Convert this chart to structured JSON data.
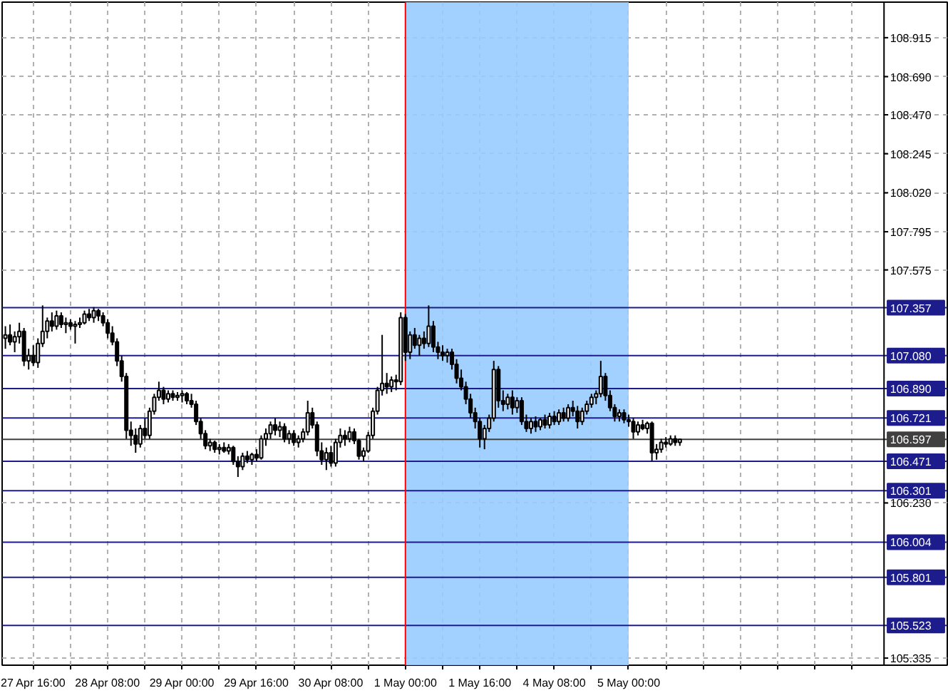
{
  "chart_data": {
    "type": "candlestick",
    "categories": [
      null,
      null,
      null,
      null,
      null,
      null,
      "27 Apr 16:00",
      null,
      null,
      null,
      null,
      null,
      null,
      null,
      null,
      null,
      null,
      null,
      null,
      null,
      null,
      null,
      "28 Apr 08:00",
      null,
      null,
      null,
      null,
      null,
      null,
      null,
      null,
      null,
      null,
      null,
      null,
      null,
      null,
      null,
      "29 Apr 00:00",
      null,
      null,
      null,
      null,
      null,
      null,
      null,
      null,
      null,
      null,
      null,
      null,
      null,
      null,
      null,
      "29 Apr 16:00",
      null,
      null,
      null,
      null,
      null,
      null,
      null,
      null,
      null,
      null,
      null,
      null,
      null,
      null,
      null,
      "30 Apr 08:00",
      null,
      null,
      null,
      null,
      null,
      null,
      null,
      null,
      null,
      null,
      null,
      null,
      null,
      null,
      null,
      "1 May 00:00",
      null,
      null,
      null,
      null,
      null,
      null,
      null,
      null,
      null,
      null,
      null,
      null,
      null,
      null,
      null,
      "1 May 16:00",
      null,
      null,
      null,
      null,
      null,
      null,
      null,
      null,
      null,
      null,
      null,
      null,
      null,
      null,
      null,
      "4 May 08:00",
      null,
      null,
      null,
      null,
      null,
      null,
      null,
      null,
      null,
      null,
      null,
      null,
      null,
      null,
      null,
      "5 May 00:00",
      null,
      null,
      null,
      null,
      null,
      null,
      null,
      null,
      null,
      null,
      null,
      null,
      null,
      null,
      null,
      null,
      null,
      null,
      null,
      null,
      null,
      null,
      null,
      null,
      null,
      null,
      null,
      null,
      null,
      null,
      null,
      null,
      null,
      null,
      null,
      null,
      null,
      null,
      null,
      null,
      null,
      null,
      null,
      null,
      null,
      null,
      null,
      null,
      null,
      null,
      null,
      null,
      null,
      null
    ],
    "ohlc": [
      [
        107.18,
        107.25,
        107.12,
        107.2
      ],
      [
        107.2,
        107.26,
        107.14,
        107.16
      ],
      [
        107.16,
        107.22,
        107.1,
        107.19
      ],
      [
        107.19,
        107.27,
        107.15,
        107.22
      ],
      [
        107.22,
        107.24,
        107.02,
        107.05
      ],
      [
        107.05,
        107.12,
        107.0,
        107.08
      ],
      [
        107.08,
        107.14,
        107.02,
        107.04
      ],
      [
        107.04,
        107.18,
        107.01,
        107.15
      ],
      [
        107.15,
        107.37,
        107.13,
        107.22
      ],
      [
        107.22,
        107.3,
        107.18,
        107.28
      ],
      [
        107.28,
        107.33,
        107.22,
        107.25
      ],
      [
        107.25,
        107.34,
        107.23,
        107.31
      ],
      [
        107.31,
        107.33,
        107.24,
        107.26
      ],
      [
        107.26,
        107.3,
        107.21,
        107.27
      ],
      [
        107.27,
        107.29,
        107.23,
        107.25
      ],
      [
        107.25,
        107.28,
        107.15,
        107.26
      ],
      [
        107.26,
        107.3,
        107.24,
        107.27
      ],
      [
        107.27,
        107.34,
        107.26,
        107.32
      ],
      [
        107.32,
        107.35,
        107.28,
        107.3
      ],
      [
        107.3,
        107.36,
        107.27,
        107.34
      ],
      [
        107.34,
        107.35,
        107.28,
        107.31
      ],
      [
        107.31,
        107.33,
        107.25,
        107.27
      ],
      [
        107.27,
        107.29,
        107.18,
        107.21
      ],
      [
        107.21,
        107.25,
        107.14,
        107.16
      ],
      [
        107.16,
        107.18,
        107.02,
        107.05
      ],
      [
        107.05,
        107.08,
        106.93,
        106.96
      ],
      [
        106.96,
        106.98,
        106.6,
        106.65
      ],
      [
        106.65,
        106.7,
        106.56,
        106.62
      ],
      [
        106.62,
        106.66,
        106.52,
        106.57
      ],
      [
        106.57,
        106.68,
        106.55,
        106.66
      ],
      [
        106.66,
        106.72,
        106.6,
        106.62
      ],
      [
        106.62,
        106.78,
        106.6,
        106.76
      ],
      [
        106.76,
        106.86,
        106.74,
        106.84
      ],
      [
        106.84,
        106.93,
        106.82,
        106.88
      ],
      [
        106.88,
        106.9,
        106.8,
        106.83
      ],
      [
        106.83,
        106.88,
        106.81,
        106.86
      ],
      [
        106.86,
        106.88,
        106.82,
        106.84
      ],
      [
        106.84,
        106.87,
        106.82,
        106.85
      ],
      [
        106.85,
        106.88,
        106.81,
        106.86
      ],
      [
        106.86,
        106.87,
        106.8,
        106.82
      ],
      [
        106.82,
        106.86,
        106.78,
        106.8
      ],
      [
        106.8,
        106.82,
        106.68,
        106.7
      ],
      [
        106.7,
        106.72,
        106.6,
        106.63
      ],
      [
        106.63,
        106.65,
        106.54,
        106.56
      ],
      [
        106.56,
        106.6,
        106.53,
        106.58
      ],
      [
        106.58,
        106.59,
        106.52,
        106.54
      ],
      [
        106.54,
        106.57,
        106.51,
        106.55
      ],
      [
        106.55,
        106.58,
        106.52,
        106.53
      ],
      [
        106.53,
        106.57,
        106.51,
        106.55
      ],
      [
        106.55,
        106.56,
        106.45,
        106.47
      ],
      [
        106.47,
        106.5,
        106.38,
        106.44
      ],
      [
        106.44,
        106.52,
        106.42,
        106.5
      ],
      [
        106.5,
        106.53,
        106.46,
        106.48
      ],
      [
        106.48,
        106.52,
        106.45,
        106.51
      ],
      [
        106.51,
        106.54,
        106.47,
        106.49
      ],
      [
        106.49,
        106.62,
        106.48,
        106.6
      ],
      [
        106.6,
        106.66,
        106.56,
        106.63
      ],
      [
        106.63,
        106.7,
        106.6,
        106.68
      ],
      [
        106.68,
        106.72,
        106.62,
        106.65
      ],
      [
        106.65,
        106.7,
        106.61,
        106.67
      ],
      [
        106.67,
        106.69,
        106.58,
        106.6
      ],
      [
        106.6,
        106.65,
        106.57,
        106.63
      ],
      [
        106.63,
        106.65,
        106.56,
        106.58
      ],
      [
        106.58,
        106.62,
        106.55,
        106.6
      ],
      [
        106.6,
        106.66,
        106.58,
        106.64
      ],
      [
        106.64,
        106.82,
        106.62,
        106.75
      ],
      [
        106.75,
        106.78,
        106.66,
        106.68
      ],
      [
        106.68,
        106.7,
        106.5,
        106.53
      ],
      [
        106.53,
        106.58,
        106.45,
        106.48
      ],
      [
        106.48,
        106.55,
        106.42,
        106.52
      ],
      [
        106.52,
        106.56,
        106.44,
        106.46
      ],
      [
        106.46,
        106.6,
        106.44,
        106.58
      ],
      [
        106.58,
        106.66,
        106.55,
        106.62
      ],
      [
        106.62,
        106.65,
        106.56,
        106.6
      ],
      [
        106.6,
        106.67,
        106.58,
        106.64
      ],
      [
        106.64,
        106.66,
        106.57,
        106.59
      ],
      [
        106.59,
        106.6,
        106.48,
        106.5
      ],
      [
        106.5,
        106.55,
        106.47,
        106.53
      ],
      [
        106.53,
        106.64,
        106.52,
        106.62
      ],
      [
        106.62,
        106.78,
        106.6,
        106.76
      ],
      [
        106.76,
        106.9,
        106.74,
        106.88
      ],
      [
        106.88,
        107.2,
        106.85,
        106.92
      ],
      [
        106.92,
        106.98,
        106.86,
        106.9
      ],
      [
        106.9,
        106.96,
        106.87,
        106.94
      ],
      [
        106.94,
        106.97,
        106.88,
        106.93
      ],
      [
        106.93,
        107.33,
        106.91,
        107.3
      ],
      [
        107.3,
        107.32,
        107.05,
        107.1
      ],
      [
        107.1,
        107.22,
        107.06,
        107.2
      ],
      [
        107.2,
        107.24,
        107.12,
        107.14
      ],
      [
        107.14,
        107.2,
        107.08,
        107.18
      ],
      [
        107.18,
        107.22,
        107.12,
        107.15
      ],
      [
        107.15,
        107.37,
        107.13,
        107.25
      ],
      [
        107.25,
        107.28,
        107.1,
        107.13
      ],
      [
        107.13,
        107.16,
        107.06,
        107.1
      ],
      [
        107.1,
        107.14,
        107.05,
        107.08
      ],
      [
        107.08,
        107.12,
        107.04,
        107.1
      ],
      [
        107.1,
        107.12,
        107.0,
        107.03
      ],
      [
        107.03,
        107.06,
        106.92,
        106.95
      ],
      [
        106.95,
        107.0,
        106.88,
        106.9
      ],
      [
        106.9,
        106.93,
        106.8,
        106.83
      ],
      [
        106.83,
        106.86,
        106.72,
        106.75
      ],
      [
        106.75,
        106.78,
        106.66,
        106.7
      ],
      [
        106.7,
        106.72,
        106.55,
        106.6
      ],
      [
        106.6,
        106.68,
        106.54,
        106.66
      ],
      [
        106.66,
        106.74,
        106.64,
        106.72
      ],
      [
        106.72,
        107.05,
        106.7,
        107.0
      ],
      [
        107.0,
        107.02,
        106.78,
        106.82
      ],
      [
        106.82,
        106.88,
        106.76,
        106.8
      ],
      [
        106.8,
        106.86,
        106.77,
        106.84
      ],
      [
        106.84,
        106.88,
        106.74,
        106.78
      ],
      [
        106.78,
        106.84,
        106.75,
        106.82
      ],
      [
        106.82,
        106.84,
        106.68,
        106.7
      ],
      [
        106.7,
        106.74,
        106.64,
        106.66
      ],
      [
        106.66,
        106.72,
        106.63,
        106.7
      ],
      [
        106.7,
        106.73,
        106.64,
        106.67
      ],
      [
        106.67,
        106.72,
        106.65,
        106.71
      ],
      [
        106.71,
        106.74,
        106.66,
        106.68
      ],
      [
        106.68,
        106.75,
        106.66,
        106.73
      ],
      [
        106.73,
        106.76,
        106.68,
        106.7
      ],
      [
        106.7,
        106.77,
        106.68,
        106.75
      ],
      [
        106.75,
        106.78,
        106.7,
        106.72
      ],
      [
        106.72,
        106.8,
        106.7,
        106.78
      ],
      [
        106.78,
        106.82,
        106.73,
        106.76
      ],
      [
        106.76,
        106.79,
        106.66,
        106.7
      ],
      [
        106.7,
        106.78,
        106.68,
        106.76
      ],
      [
        106.76,
        106.82,
        106.74,
        106.8
      ],
      [
        106.8,
        106.86,
        106.78,
        106.84
      ],
      [
        106.84,
        106.88,
        106.8,
        106.86
      ],
      [
        106.86,
        107.05,
        106.84,
        106.96
      ],
      [
        106.96,
        106.98,
        106.82,
        106.85
      ],
      [
        106.85,
        106.88,
        106.76,
        106.78
      ],
      [
        106.78,
        106.8,
        106.7,
        106.73
      ],
      [
        106.73,
        106.77,
        106.7,
        106.75
      ],
      [
        106.75,
        106.77,
        106.69,
        106.71
      ],
      [
        106.71,
        106.74,
        106.67,
        106.7
      ],
      [
        106.7,
        106.72,
        106.6,
        106.64
      ],
      [
        106.64,
        106.7,
        106.62,
        106.68
      ],
      [
        106.68,
        106.71,
        106.65,
        106.66
      ],
      [
        106.66,
        106.7,
        106.63,
        106.69
      ],
      [
        106.69,
        106.7,
        106.47,
        106.52
      ],
      [
        106.52,
        106.57,
        106.48,
        106.54
      ],
      [
        106.54,
        106.6,
        106.52,
        106.58
      ],
      [
        106.58,
        106.61,
        106.55,
        106.57
      ],
      [
        106.57,
        106.62,
        106.56,
        106.6
      ],
      [
        106.6,
        106.62,
        106.56,
        106.58
      ],
      [
        106.58,
        106.6,
        106.56,
        106.597
      ],
      null,
      null,
      null,
      null,
      null,
      null,
      null,
      null,
      null,
      null,
      null,
      null,
      null,
      null,
      null,
      null,
      null,
      null,
      null,
      null,
      null,
      null,
      null,
      null,
      null,
      null,
      null,
      null,
      null,
      null,
      null,
      null,
      null,
      null,
      null,
      null,
      null,
      null,
      null,
      null,
      null,
      null,
      null
    ],
    "ylim": [
      105.294,
      109.12
    ],
    "yticks": [
      {
        "value": 108.915,
        "label": "108.915"
      },
      {
        "value": 108.69,
        "label": "108.690"
      },
      {
        "value": 108.47,
        "label": "108.470"
      },
      {
        "value": 108.245,
        "label": "108.245"
      },
      {
        "value": 108.02,
        "label": "108.020"
      },
      {
        "value": 107.795,
        "label": "107.795"
      },
      {
        "value": 107.575,
        "label": "107.575"
      },
      {
        "value": 106.23,
        "label": "106.230"
      },
      {
        "value": 105.335,
        "label": "105.335"
      }
    ],
    "grid": true,
    "ref_lines": [
      {
        "axis": "y",
        "value": 107.357,
        "label": "107.357",
        "color": "#1c1c8c"
      },
      {
        "axis": "y",
        "value": 107.08,
        "label": "107.080",
        "color": "#1c1c8c"
      },
      {
        "axis": "y",
        "value": 106.89,
        "label": "106.890",
        "color": "#1c1c8c"
      },
      {
        "axis": "y",
        "value": 106.721,
        "label": "106.721",
        "color": "#1c1c8c"
      },
      {
        "axis": "y",
        "value": 106.597,
        "label": "106.597",
        "color": "#404040"
      },
      {
        "axis": "y",
        "value": 106.471,
        "label": "106.471",
        "color": "#1c1c8c"
      },
      {
        "axis": "y",
        "value": 106.301,
        "label": "106.301",
        "color": "#1c1c8c"
      },
      {
        "axis": "y",
        "value": 106.004,
        "label": "106.004",
        "color": "#1c1c8c"
      },
      {
        "axis": "y",
        "value": 105.801,
        "label": "105.801",
        "color": "#1c1c8c"
      },
      {
        "axis": "y",
        "value": 105.523,
        "label": "105.523",
        "color": "#1c1c8c"
      },
      {
        "axis": "x",
        "value": "1 May 00:00",
        "color": "#ff0000"
      }
    ],
    "bands": [
      {
        "axis": "x",
        "from": "1 May 00:00",
        "to": "5 May 00:00",
        "color": "#99ccff"
      }
    ]
  }
}
